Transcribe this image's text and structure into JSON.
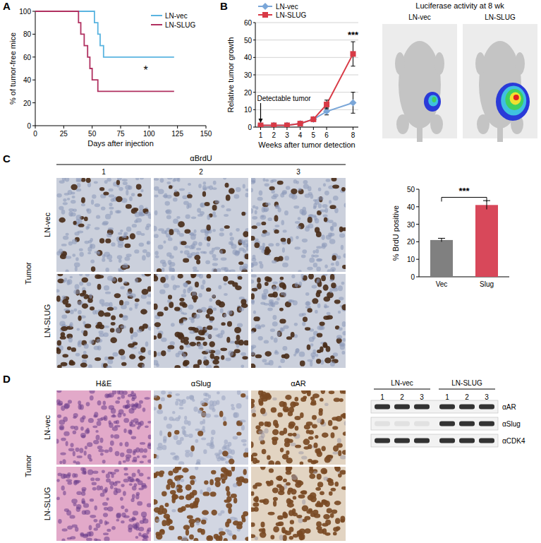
{
  "chart_data": [
    {
      "type": "line",
      "line_style": "step",
      "x_label": "Days after injection",
      "y_label": "% of tumor-free mice",
      "xlim": [
        0,
        150
      ],
      "xticks": [
        0,
        25,
        50,
        75,
        100,
        125,
        150
      ],
      "ylim": [
        0,
        100
      ],
      "yticks": [
        0,
        20,
        40,
        60,
        80,
        100
      ],
      "legend": "top-right",
      "series": [
        {
          "name": "LN-vec",
          "color": "#5ab4e0",
          "x": [
            0,
            52,
            55,
            57,
            60,
            122
          ],
          "values": [
            100,
            90,
            80,
            70,
            60,
            60
          ]
        },
        {
          "name": "LN-SLUG",
          "color": "#b03060",
          "x": [
            0,
            38,
            40,
            43,
            46,
            48,
            50,
            55,
            122
          ],
          "values": [
            100,
            90,
            80,
            70,
            60,
            50,
            40,
            30,
            30
          ]
        }
      ],
      "annotations": [
        {
          "text": "*",
          "x": 97,
          "y": 45
        }
      ]
    },
    {
      "type": "line",
      "x_label": "Weeks after tumor detection",
      "y_label": "Relative tumor growth",
      "x": [
        1,
        2,
        3,
        4,
        5,
        6,
        8
      ],
      "xlim": [
        0.6,
        8.4
      ],
      "xticks": [
        1,
        2,
        3,
        4,
        5,
        6,
        8
      ],
      "ylim": [
        0,
        60
      ],
      "yticks": [
        0,
        10,
        20,
        30,
        40,
        50,
        60
      ],
      "grid": true,
      "legend": "top-left",
      "series": [
        {
          "name": "LN-vec",
          "color": "#7aa6d8",
          "marker": "diamond",
          "values": [
            1,
            1,
            1,
            2,
            4.5,
            9,
            14
          ],
          "errors": [
            0,
            0,
            0,
            0.3,
            0.8,
            2,
            6
          ]
        },
        {
          "name": "LN-SLUG",
          "color": "#d83a46",
          "marker": "square",
          "values": [
            1,
            1,
            1,
            2,
            4.5,
            13,
            42
          ],
          "errors": [
            0,
            0,
            0,
            0.3,
            0.8,
            2.5,
            7
          ]
        }
      ],
      "annotations": [
        {
          "text": "Detectable tumor",
          "x": 1,
          "y": 15,
          "arrow_to": 2
        },
        {
          "text": "***",
          "x": 8,
          "y": 51
        }
      ]
    },
    {
      "type": "bar",
      "y_label": "% BrdU positive",
      "categories": [
        "Vec",
        "Slug"
      ],
      "values": [
        21,
        41
      ],
      "errors": [
        1,
        2.5
      ],
      "colors": [
        "#808080",
        "#d8485a"
      ],
      "ylim": [
        0,
        50
      ],
      "yticks": [
        0,
        10,
        20,
        30,
        40,
        50
      ],
      "annotations": [
        {
          "text": "***",
          "y": 47
        }
      ]
    }
  ],
  "figure": {
    "panel_labels": [
      "A",
      "B",
      "C",
      "D"
    ],
    "luciferase": {
      "title": "Luciferase activity at 8 wk",
      "labels": [
        "LN-vec",
        "LN-SLUG"
      ]
    },
    "panel_c": {
      "stain": "αBrdU",
      "columns": [
        "1",
        "2",
        "3"
      ],
      "rows": [
        "LN-vec",
        "LN-SLUG"
      ],
      "side": "Tumor"
    },
    "panel_d": {
      "columns": [
        "H&E",
        "αSlug",
        "αAR"
      ],
      "rows": [
        "LN-vec",
        "LN-SLUG"
      ],
      "side": "Tumor",
      "blot": {
        "groups": [
          "LN-vec",
          "LN-SLUG"
        ],
        "lanes": [
          "1",
          "2",
          "3",
          "1",
          "2",
          "3"
        ],
        "bands": [
          "αAR",
          "αSlug",
          "αCDK4"
        ],
        "present": [
          [
            true,
            true,
            true,
            true,
            true,
            true
          ],
          [
            false,
            false,
            false,
            true,
            true,
            true
          ],
          [
            true,
            true,
            true,
            true,
            true,
            true
          ]
        ]
      }
    }
  }
}
